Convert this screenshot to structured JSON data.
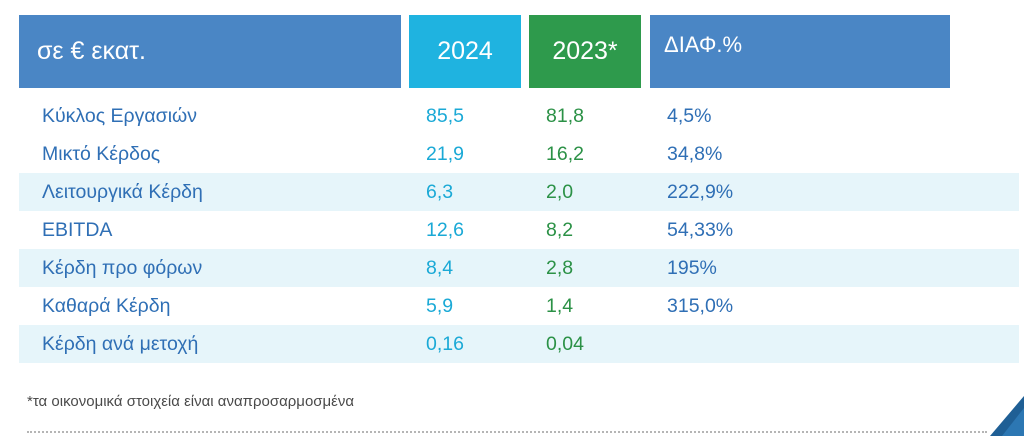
{
  "header": {
    "label": "σε € εκατ.",
    "col_2024": "2024",
    "col_2023": "2023*",
    "col_diff": "ΔΙΑΦ.%"
  },
  "rows": [
    {
      "label": "Κύκλος Εργασιών",
      "v2024": "85,5",
      "v2023": "81,8",
      "diff": "4,5%",
      "shaded": false
    },
    {
      "label": "Μικτό Κέρδος",
      "v2024": "21,9",
      "v2023": "16,2",
      "diff": "34,8%",
      "shaded": false
    },
    {
      "label": "Λειτουργικά Κέρδη",
      "v2024": "6,3",
      "v2023": "2,0",
      "diff": "222,9%",
      "shaded": true
    },
    {
      "label": "EBITDA",
      "v2024": "12,6",
      "v2023": "8,2",
      "diff": "54,33%",
      "shaded": false
    },
    {
      "label": "Κέρδη προ φόρων",
      "v2024": "8,4",
      "v2023": "2,8",
      "diff": "195%",
      "shaded": true
    },
    {
      "label": "Καθαρά Κέρδη",
      "v2024": "5,9",
      "v2023": "1,4",
      "diff": "315,0%",
      "shaded": false
    },
    {
      "label": "Κέρδη ανά μετοχή",
      "v2024": "0,16",
      "v2023": "0,04",
      "diff": "",
      "shaded": true
    }
  ],
  "footnote": "*τα οικονομικά στοιχεία είναι αναπροσαρμοσμένα",
  "colors": {
    "header_blue": "#4a86c5",
    "header_cyan": "#1fb3e0",
    "header_green": "#2e9a4c",
    "row_shade": "#e6f5fa",
    "corner_accent": "#1f5f95"
  }
}
